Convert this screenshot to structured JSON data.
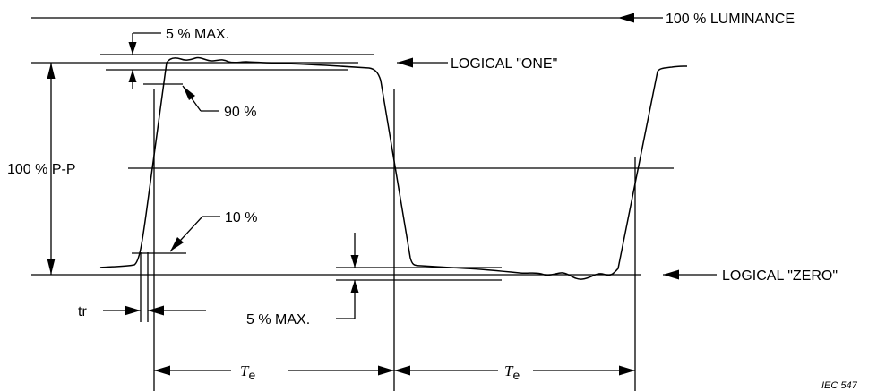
{
  "labels": {
    "luminance": "100 % LUMINANCE",
    "max_top": "5 % MAX.",
    "logical_one": "LOGICAL \"ONE\"",
    "ninety": "90 %",
    "pp": "100 % P-P",
    "ten": "10 %",
    "logical_zero": "LOGICAL \"ZERO\"",
    "tr": "tr",
    "max_bottom": "5 % MAX.",
    "te_symbol": "T",
    "te_subscript": "e",
    "ref": "IEC  547"
  }
}
